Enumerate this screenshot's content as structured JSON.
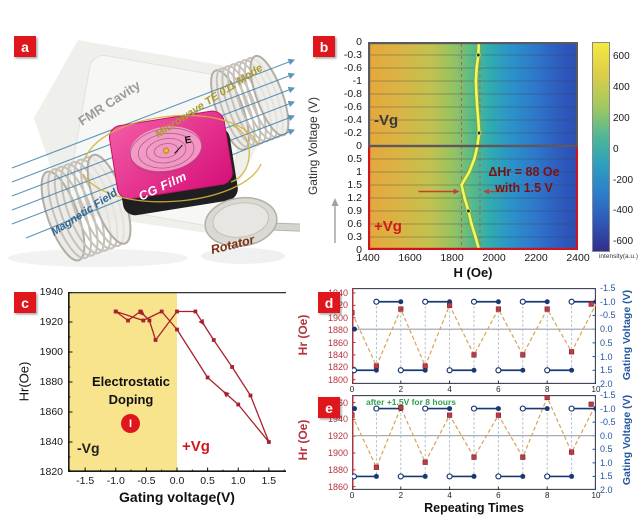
{
  "panel_labels": {
    "a": "a",
    "b": "b",
    "c": "c",
    "d": "d",
    "e": "e"
  },
  "colors": {
    "panel_label_bg": "#e0161d",
    "neg_vg_frame": "#585a5e",
    "pos_vg_frame": "#cc1520",
    "resonance_line": "#f0f868",
    "data_maroon": "#a8222e",
    "gate_blue": "#173a75",
    "hr_dash_orange": "#d8a258",
    "note_green": "#2f9e52",
    "negative_region_yellow": "#f8e48c",
    "heat_left_orange": "#e6a73c",
    "heat_right_blue": "#2c4fb4"
  },
  "panel_a": {
    "fmr_cavity": "FMR Cavity",
    "microwave": "Microwave TE 011 Mode",
    "magnetic_field": "Magnetic Field",
    "cg_film": "CG Film",
    "e_field": "E",
    "rotator": "Rotator"
  },
  "panel_b": {
    "ylabel": "Gating Voltage (V)",
    "xlabel": "H (Oe)",
    "neg_label": "-Vg",
    "pos_label": "+Vg",
    "annotation_line1": "ΔHr = 88 Oe",
    "annotation_line2": "with 1.5 V",
    "colorbar_label": "intensity(a.u.)"
  },
  "panel_c": {
    "ylabel": "Hr(Oe)",
    "xlabel": "Gating voltage(V)",
    "region_line1": "Electrostatic",
    "region_line2": "Doping",
    "region_badge": "I",
    "neg_label": "-Vg",
    "pos_label": "+Vg"
  },
  "panel_d": {
    "ylabel_left": "Hr (Oe)",
    "ylabel_right": "Gating Voltage (V)"
  },
  "panel_e": {
    "ylabel_left": "Hr (Oe)",
    "ylabel_right": "Gating Voltage (V)",
    "xlabel": "Repeating Times",
    "annotation": "after +1.5V for 8 hours"
  },
  "chart_data": [
    {
      "panel": "b",
      "type": "heatmap",
      "xlabel": "H (Oe)",
      "ylabel": "Gating Voltage (V)",
      "xlim": [
        1400,
        2400
      ],
      "x_ticks": [
        1400,
        1600,
        1800,
        2000,
        2200,
        2400
      ],
      "y_ticks": [
        "0",
        "-0.3",
        "-0.6",
        "-1",
        "-0.8",
        "-0.6",
        "-0.4",
        "-0.2",
        "0",
        "0.5",
        "1",
        "1.5",
        "1.2",
        "0.9",
        "0.6",
        "0.3",
        "0"
      ],
      "resonance_H": [
        1928,
        1925,
        1917,
        1914,
        1916,
        1920,
        1925,
        1929,
        1921,
        1906,
        1882,
        1845,
        1860,
        1878,
        1893,
        1912,
        1929
      ],
      "marker_rows": [
        1,
        7,
        13
      ],
      "dashed_H": [
        1845,
        1933
      ],
      "arrow_row_y": 11.5,
      "annotation": [
        "ΔHr = 88 Oe",
        "with 1.5 V"
      ],
      "colorbar": {
        "ticks": [
          600,
          400,
          200,
          0,
          -200,
          -400,
          -600
        ],
        "range": [
          -650,
          700
        ],
        "label": "intensity(a.u.)"
      }
    },
    {
      "panel": "c",
      "type": "line",
      "xlabel": "Gating voltage(V)",
      "ylabel": "Hr(Oe)",
      "xlim": [
        -1.78,
        1.78
      ],
      "ylim": [
        1820,
        1940
      ],
      "x_ticks": [
        -1.5,
        -1.0,
        -0.5,
        0.0,
        0.5,
        1.0,
        1.5
      ],
      "x_tick_labels": [
        "-1.5",
        "-1.0",
        "-0.5",
        "0.0",
        "0.5",
        "1.0",
        "1.5"
      ],
      "y_ticks": [
        1820,
        1840,
        1860,
        1880,
        1900,
        1920,
        1940
      ],
      "path": [
        [
          -1.0,
          1927
        ],
        [
          -0.8,
          1921
        ],
        [
          -0.6,
          1927
        ],
        [
          -0.45,
          1921
        ],
        [
          -0.35,
          1908
        ],
        [
          0,
          1927
        ],
        [
          0.3,
          1927
        ],
        [
          0.6,
          1908
        ],
        [
          0.9,
          1890
        ],
        [
          1.2,
          1871
        ],
        [
          1.5,
          1840
        ],
        [
          1.0,
          1865
        ],
        [
          0.5,
          1883
        ],
        [
          0.0,
          1915
        ],
        [
          -0.25,
          1927
        ],
        [
          -0.55,
          1921
        ],
        [
          -1.0,
          1927
        ]
      ],
      "arrows": [
        {
          "from": [
            -0.6,
            1927
          ],
          "to": [
            -0.45,
            1921
          ]
        },
        {
          "from": [
            0.3,
            1927
          ],
          "to": [
            0.6,
            1908
          ]
        },
        {
          "from": [
            1.0,
            1865
          ],
          "to": [
            0.5,
            1883
          ]
        }
      ],
      "negative_region_max_x": 0
    },
    {
      "panel": "d",
      "type": "line-dual-axis",
      "xlim": [
        0,
        10
      ],
      "x_ticks": [
        0,
        2,
        4,
        6,
        8,
        10
      ],
      "ylim_left": [
        1793,
        1948
      ],
      "left_ticks": [
        1800,
        1820,
        1840,
        1860,
        1880,
        1900,
        1920,
        1940
      ],
      "right_lim": [
        -1.5,
        2.0
      ],
      "right_ticks": [
        -1.5,
        -1.0,
        -0.5,
        0.0,
        0.5,
        1.0,
        1.5,
        2.0
      ],
      "right_tick_labels": [
        "-1.5",
        "-1.0",
        "-0.5",
        "0.0",
        "0.5",
        "1.0",
        "1.5",
        "2.0"
      ],
      "hr_values": [
        1908,
        1822,
        1914,
        1822,
        1920,
        1840,
        1914,
        1840,
        1914,
        1845,
        1922
      ],
      "gate_high": -1.0,
      "gate_low": 1.5,
      "zero_line": 0.0,
      "start_marker_v": 0.0
    },
    {
      "panel": "e",
      "type": "line-dual-axis",
      "xlim": [
        0,
        10
      ],
      "x_ticks": [
        0,
        2,
        4,
        6,
        8,
        10
      ],
      "ylim_left": [
        1856,
        1969
      ],
      "left_ticks": [
        1860,
        1880,
        1900,
        1920,
        1940,
        1960
      ],
      "right_lim": [
        -1.5,
        2.0
      ],
      "right_ticks": [
        -1.5,
        -1.0,
        -0.5,
        0.0,
        0.5,
        1.0,
        1.5,
        2.0
      ],
      "right_tick_labels": [
        "-1.5",
        "-1.0",
        "-0.5",
        "0.0",
        "0.5",
        "1.0",
        "1.5",
        "2.0"
      ],
      "hr_values": [
        1945,
        1883,
        1954,
        1889,
        1945,
        1895,
        1945,
        1895,
        1966,
        1901,
        1958
      ],
      "gate_high": -1.0,
      "gate_low": 1.5,
      "zero_line": 0.0,
      "start_marker_v": -1.0,
      "annotation": "after +1.5V for 8 hours",
      "xlabel": "Repeating Times"
    }
  ]
}
